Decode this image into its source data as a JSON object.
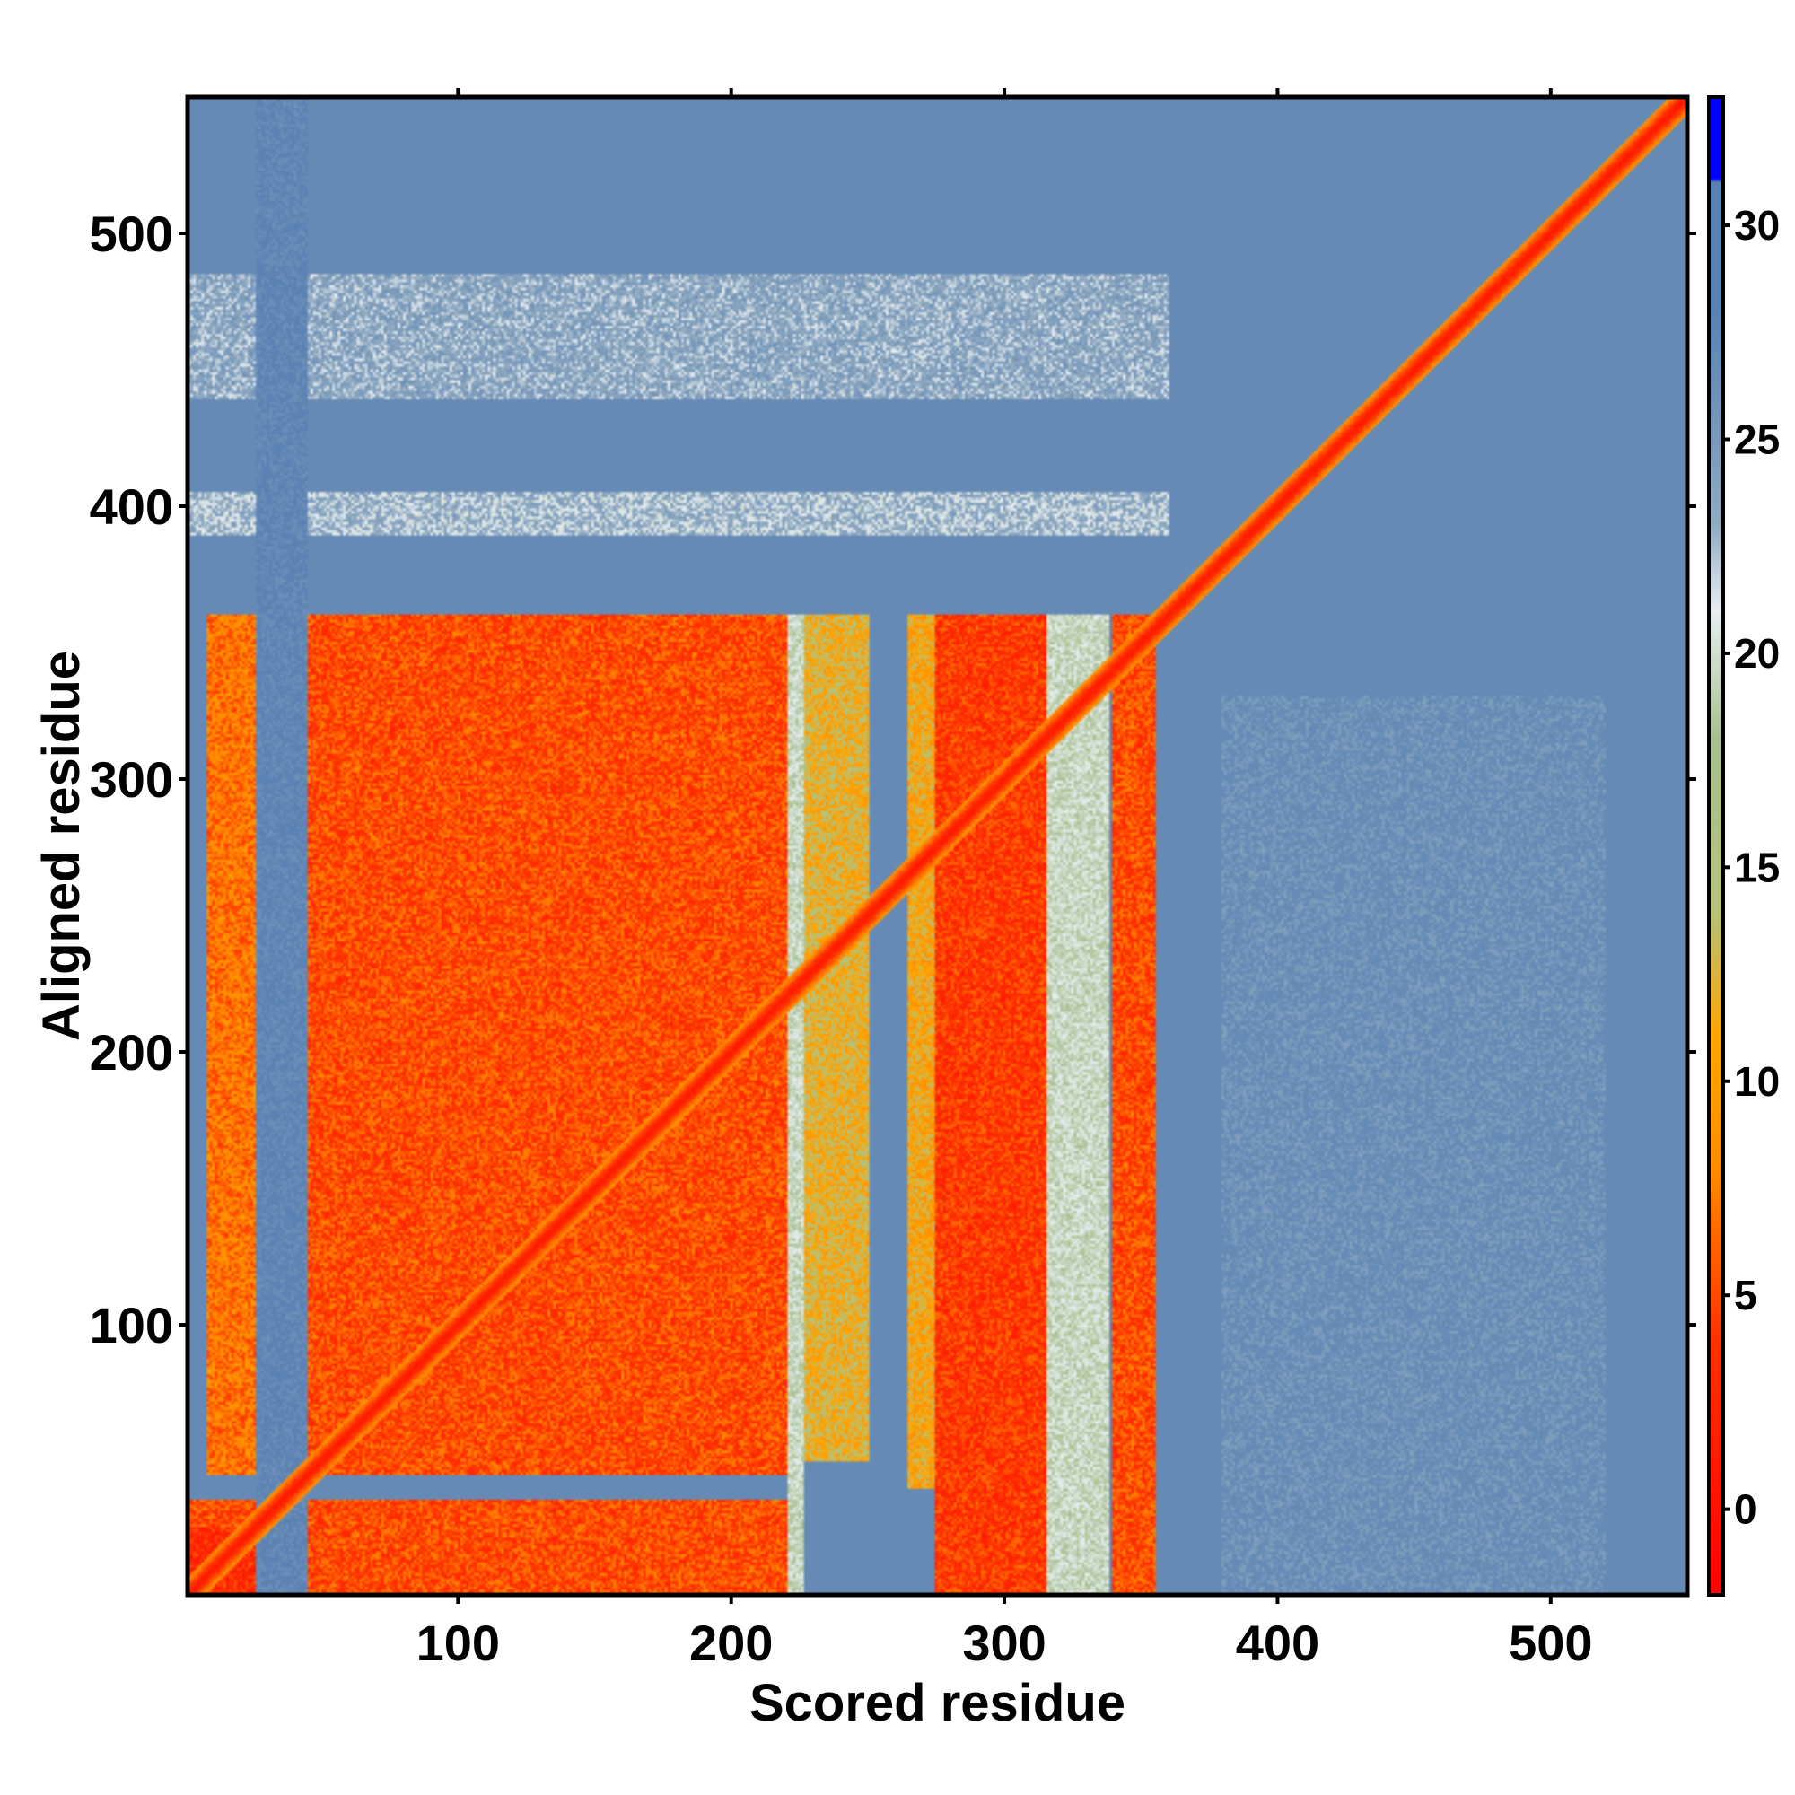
{
  "chart_data": {
    "type": "heatmap",
    "xlabel": "Scored residue",
    "ylabel": "Aligned residue",
    "n_residues": 550,
    "xlim": [
      1,
      550
    ],
    "ylim": [
      1,
      550
    ],
    "x_ticks": [
      100,
      200,
      300,
      400,
      500
    ],
    "y_ticks": [
      100,
      200,
      300,
      400,
      500
    ],
    "colorbar": {
      "range": [
        -2,
        33
      ],
      "ticks": [
        0,
        5,
        10,
        15,
        20,
        25,
        30
      ],
      "stops": [
        {
          "value": -2,
          "color": "#ff0000"
        },
        {
          "value": 4,
          "color": "#ff3300"
        },
        {
          "value": 8,
          "color": "#ff8c00"
        },
        {
          "value": 11,
          "color": "#ffa500"
        },
        {
          "value": 14,
          "color": "#b5c27a"
        },
        {
          "value": 18,
          "color": "#a8c090"
        },
        {
          "value": 21,
          "color": "#e8eef2"
        },
        {
          "value": 23,
          "color": "#90aac0"
        },
        {
          "value": 28,
          "color": "#5a82b4"
        },
        {
          "value": 31,
          "color": "#5a82b4"
        },
        {
          "value": 31.1,
          "color": "#0000ff"
        },
        {
          "value": 33,
          "color": "#0000ff"
        }
      ]
    },
    "diagonal_value": 0,
    "background_value": 27,
    "blocks": [
      {
        "x": [
          8,
          25
        ],
        "y": [
          45,
          360
        ],
        "value": 6
      },
      {
        "x": [
          45,
          220
        ],
        "y": [
          45,
          360
        ],
        "value": 4
      },
      {
        "x": [
          225,
          250
        ],
        "y": [
          50,
          360
        ],
        "value": 11
      },
      {
        "x": [
          265,
          275
        ],
        "y": [
          40,
          360
        ],
        "value": 10
      },
      {
        "x": [
          275,
          315
        ],
        "y": [
          1,
          360
        ],
        "value": 3
      },
      {
        "x": [
          340,
          355
        ],
        "y": [
          1,
          360
        ],
        "value": 4
      },
      {
        "x": [
          1,
          220
        ],
        "y": [
          1,
          35
        ],
        "value": 4
      },
      {
        "x": [
          1,
          25
        ],
        "y": [
          1,
          25
        ],
        "value": 2
      }
    ],
    "bands": [
      {
        "x": [
          1,
          360
        ],
        "y": [
          440,
          485
        ],
        "value": 21
      },
      {
        "x": [
          1,
          360
        ],
        "y": [
          390,
          405
        ],
        "value": 20
      },
      {
        "x": [
          380,
          520
        ],
        "y": [
          1,
          330
        ],
        "value": 24
      }
    ],
    "gaps": [
      {
        "x": [
          26,
          44
        ],
        "y": [
          1,
          550
        ],
        "value": 26
      },
      {
        "x": [
          221,
          226
        ],
        "y": [
          1,
          360
        ],
        "value": 18
      },
      {
        "x": [
          316,
          338
        ],
        "y": [
          1,
          360
        ],
        "value": 18
      }
    ]
  }
}
